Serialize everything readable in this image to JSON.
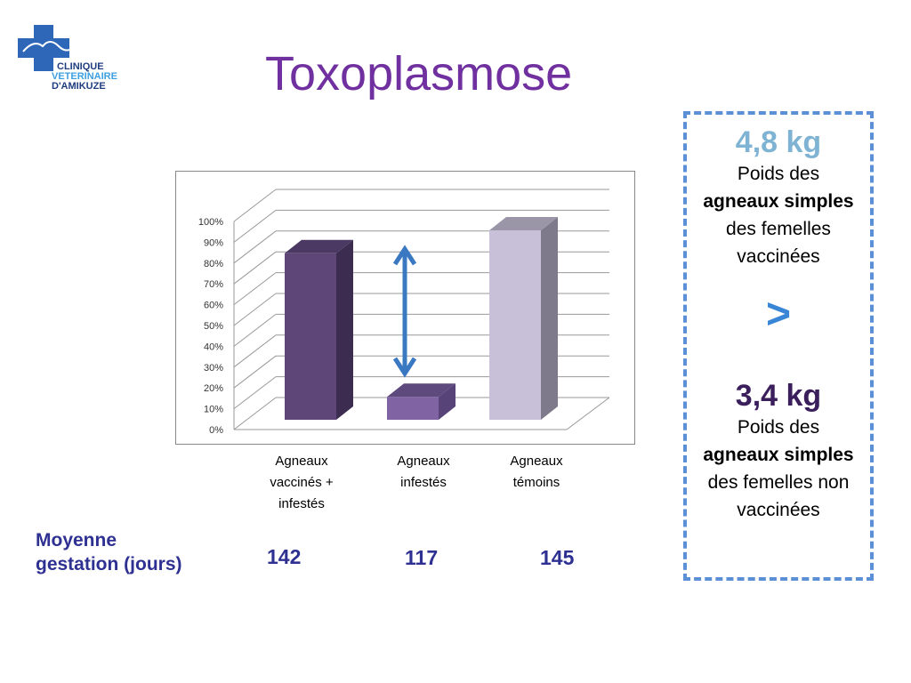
{
  "logo": {
    "line1": "CLINIQUE",
    "line2": "VETERINAIRE",
    "line3": "D'AMIKUZE"
  },
  "title": "Toxoplasmose",
  "chart_data": {
    "type": "bar",
    "categories": [
      "Agneaux vaccinés + infestés",
      "Agneaux infestés",
      "Agneaux témoins"
    ],
    "values": [
      80,
      11,
      91
    ],
    "colors": [
      "#5e4778",
      "#7f63a3",
      "#c7c0d8"
    ],
    "yticks": [
      "0%",
      "10%",
      "20%",
      "30%",
      "40%",
      "50%",
      "60%",
      "70%",
      "80%",
      "90%",
      "100%"
    ],
    "ylim": [
      0,
      100
    ],
    "title": "",
    "xlabel": "",
    "ylabel": ""
  },
  "categories_display": [
    [
      "Agneaux",
      "vaccinés +",
      "infestés"
    ],
    [
      "Agneaux",
      "infestés"
    ],
    [
      "Agneaux",
      "témoins"
    ]
  ],
  "gestation": {
    "label1": "Moyenne",
    "label2": "gestation (jours)",
    "values": [
      "142",
      "117",
      "145"
    ]
  },
  "box": {
    "v1": "4,8 kg",
    "l1a": "Poids des",
    "l1b": "agneaux simples",
    "l1c": "des femelles",
    "l1d": "vaccinées",
    "gt": ">",
    "v2": "3,4 kg",
    "l2a": "Poids des",
    "l2b": "agneaux simples",
    "l2c": "des femelles non",
    "l2d": "vaccinées"
  }
}
